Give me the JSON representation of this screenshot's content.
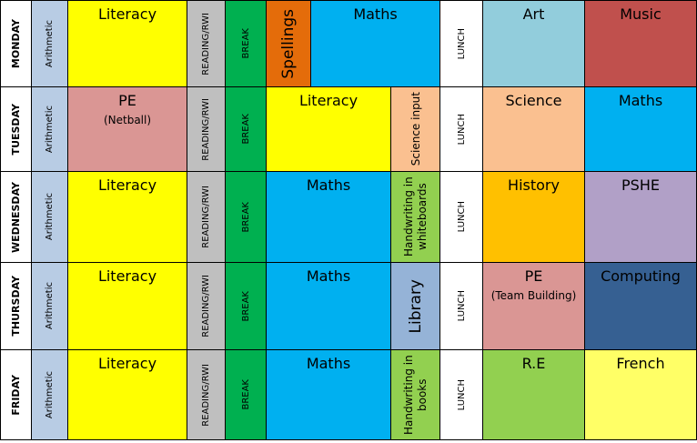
{
  "colors": {
    "yellow": "#ffff00",
    "blue": "#00b0f0",
    "green": "#00b050",
    "grey": "#bfbfbf",
    "light_blue": "#b8cce4",
    "orange": "#e46c0a",
    "pale_teal": "#92cddc",
    "red": "#c0504d",
    "pink": "#da9694",
    "peach": "#fac090",
    "lime": "#92d050",
    "gold": "#ffc000",
    "lavender": "#b1a0c7",
    "navy": "#366092",
    "steel": "#95b3d7",
    "white": "#ffffff"
  },
  "days": [
    {
      "day": "MONDAY",
      "arithmetic": "Arithmetic",
      "reading": "READING/RWI",
      "break": "BREAK",
      "lunch": "LUNCH",
      "session1": {
        "label": "Literacy",
        "sub": ""
      },
      "spellings": "Spellings",
      "maths": "Maths",
      "after1": {
        "label": "Art",
        "sub": ""
      },
      "after2": {
        "label": "Music",
        "sub": ""
      }
    },
    {
      "day": "TUESDAY",
      "arithmetic": "Arithmetic",
      "reading": "READING/RWI",
      "break": "BREAK",
      "lunch": "LUNCH",
      "session1": {
        "label": "PE",
        "sub": "(Netball)"
      },
      "literacy": "Literacy",
      "science_input": "Science input",
      "after1": {
        "label": "Science",
        "sub": ""
      },
      "after2": {
        "label": "Maths",
        "sub": ""
      }
    },
    {
      "day": "WEDNESDAY",
      "arithmetic": "Arithmetic",
      "reading": "READING/RWI",
      "break": "BREAK",
      "lunch": "LUNCH",
      "session1": {
        "label": "Literacy",
        "sub": ""
      },
      "maths": "Maths",
      "side": "Handwriting in whiteboards",
      "after1": {
        "label": "History",
        "sub": ""
      },
      "after2": {
        "label": "PSHE",
        "sub": ""
      }
    },
    {
      "day": "THURSDAY",
      "arithmetic": "Arithmetic",
      "reading": "READING/RWI",
      "break": "BREAK",
      "lunch": "LUNCH",
      "session1": {
        "label": "Literacy",
        "sub": ""
      },
      "maths": "Maths",
      "side": "Library",
      "after1": {
        "label": "PE",
        "sub": "(Team Building)"
      },
      "after2": {
        "label": "Computing",
        "sub": ""
      }
    },
    {
      "day": "FRIDAY",
      "arithmetic": "Arithmetic",
      "reading": "READING/RWI",
      "break": "BREAK",
      "lunch": "LUNCH",
      "session1": {
        "label": "Literacy",
        "sub": ""
      },
      "maths": "Maths",
      "side": "Handwriting in books",
      "after1": {
        "label": "R.E",
        "sub": ""
      },
      "after2": {
        "label": "French",
        "sub": ""
      }
    }
  ]
}
